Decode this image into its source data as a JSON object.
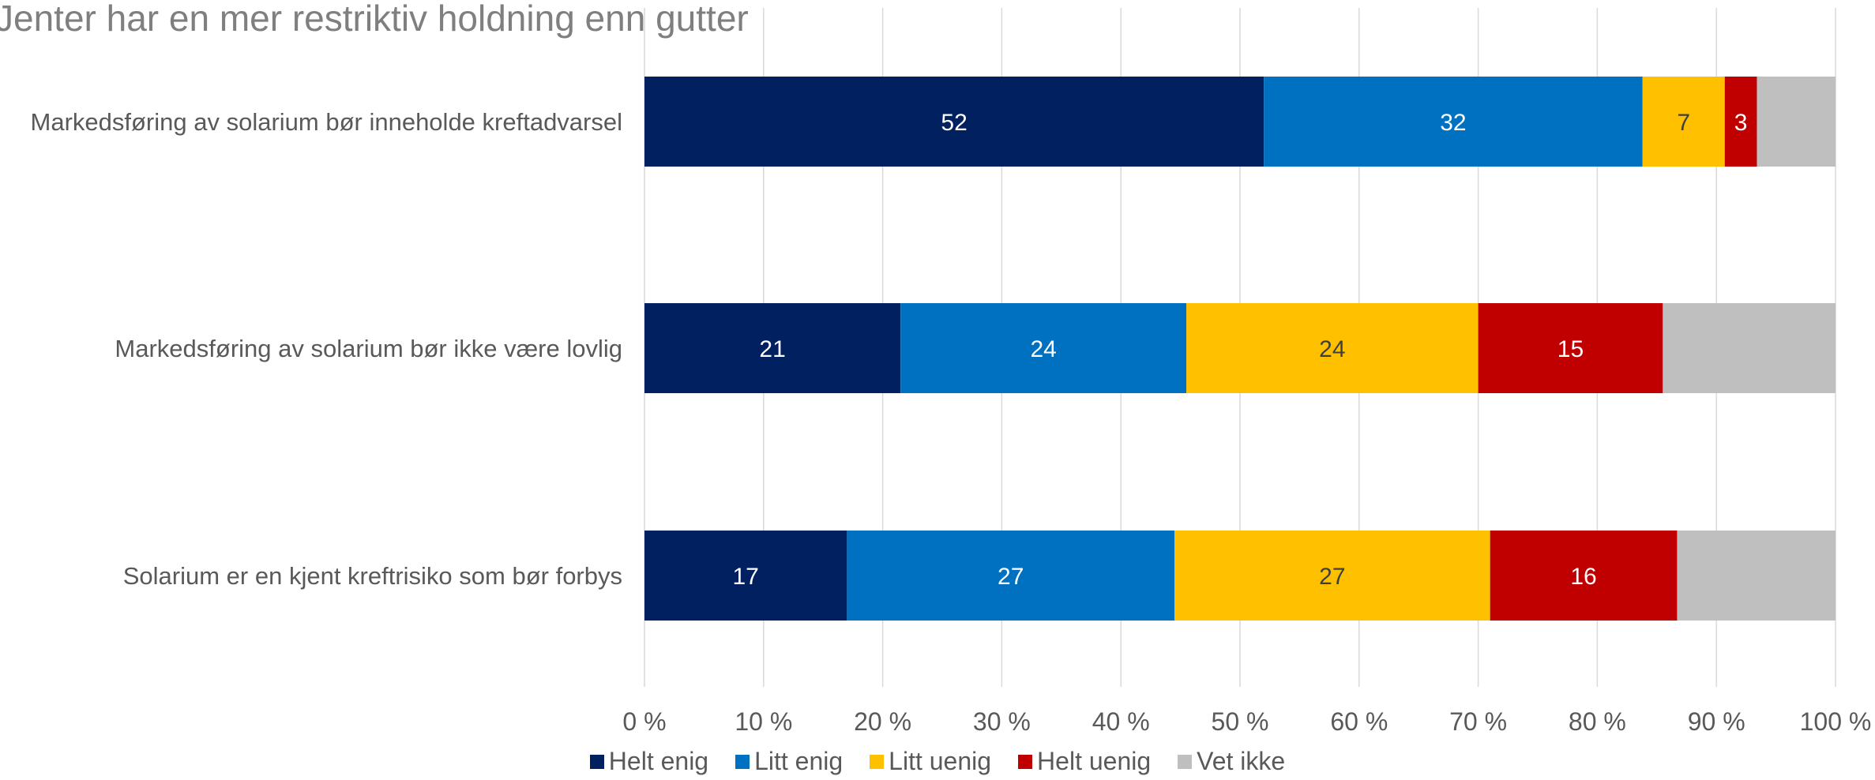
{
  "chart_data": {
    "type": "bar",
    "orientation": "horizontal",
    "stacked": true,
    "title": "Jenter har en mer restriktiv holdning enn gutter",
    "categories": [
      "Markedsføring av solarium bør inneholde kreftadvarsel",
      "Markedsføring av solarium bør ikke være lovlig",
      "Solarium er en kjent kreftrisiko som bør forbys"
    ],
    "series": [
      {
        "name": "Helt enig",
        "color": "#002060",
        "values": [
          52,
          21.5,
          17
        ],
        "labels": [
          "52",
          "21",
          "17"
        ]
      },
      {
        "name": "Litt enig",
        "color": "#0070c0",
        "values": [
          31.8,
          24,
          27.5
        ],
        "labels": [
          "32",
          "24",
          "27"
        ]
      },
      {
        "name": "Litt uenig",
        "color": "#ffc000",
        "values": [
          6.9,
          24.5,
          26.5
        ],
        "labels": [
          "7",
          "24",
          "27"
        ]
      },
      {
        "name": "Helt uenig",
        "color": "#c00000",
        "values": [
          2.7,
          15.5,
          15.7
        ],
        "labels": [
          "3",
          "15",
          "16"
        ]
      },
      {
        "name": "Vet ikke",
        "color": "#bfbfbf",
        "values": [
          6.6,
          14.5,
          13.3
        ],
        "labels": [
          "",
          "",
          ""
        ]
      }
    ],
    "x_ticks": [
      "0 %",
      "10 %",
      "20 %",
      "30 %",
      "40 %",
      "50 %",
      "60 %",
      "70 %",
      "80 %",
      "90 %",
      "100 %"
    ],
    "xlim": [
      0,
      100
    ],
    "grid": true,
    "legend_position": "bottom"
  }
}
